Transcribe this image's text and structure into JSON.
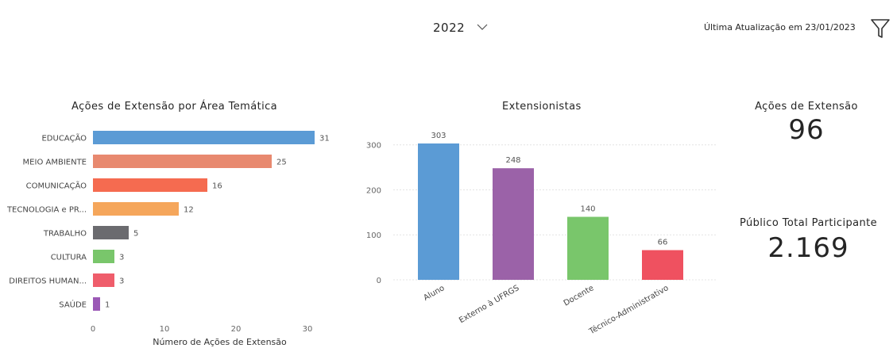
{
  "header": {
    "year": "2022",
    "last_update": "Última Atualização em 23/01/2023"
  },
  "icons": [
    "chevron-down-icon",
    "filter-icon"
  ],
  "cards": {
    "acoes_label": "Ações de Extensão",
    "acoes_value": "96",
    "publico_label": "Público Total Participante",
    "publico_value": "2.169"
  },
  "chart_data": [
    {
      "type": "bar",
      "orientation": "horizontal",
      "title": "Ações de Extensão por Área Temática",
      "xlabel": "Número de Ações de Extensão",
      "ylabel": "",
      "xlim": [
        0,
        31
      ],
      "xticks": [
        0,
        10,
        20,
        30
      ],
      "grid": false,
      "categories": [
        "EDUCAÇÃO",
        "MEIO AMBIENTE",
        "COMUNICAÇÃO",
        "TECNOLOGIA e PR...",
        "TRABALHO",
        "CULTURA",
        "DIREITOS HUMAN...",
        "SAÚDE"
      ],
      "values": [
        31,
        25,
        16,
        12,
        5,
        3,
        3,
        1
      ],
      "colors": [
        "#5b9bd5",
        "#e8896f",
        "#f56b50",
        "#f5a65b",
        "#6b6b6f",
        "#79c66b",
        "#ef5d6b",
        "#9b59b6"
      ]
    },
    {
      "type": "bar",
      "orientation": "vertical",
      "title": "Extensionistas",
      "xlabel": "",
      "ylabel": "",
      "ylim": [
        0,
        303
      ],
      "yticks": [
        0,
        100,
        200,
        300
      ],
      "grid": true,
      "categories": [
        "Aluno",
        "Externo à UFRGS",
        "Docente",
        "Técnico-Administrativo"
      ],
      "values": [
        303,
        248,
        140,
        66
      ],
      "colors": [
        "#5b9bd5",
        "#9b62a8",
        "#79c66b",
        "#ef5160"
      ]
    }
  ]
}
